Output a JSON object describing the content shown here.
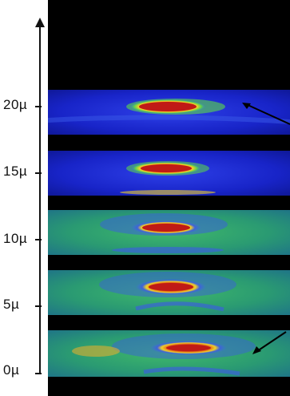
{
  "axis": {
    "labels": [
      "20µ",
      "15µ",
      "10µ",
      "5µ",
      "0µ"
    ]
  },
  "strips": [
    {
      "name": "slice-20um",
      "palette": "blue"
    },
    {
      "name": "slice-15um",
      "palette": "blue"
    },
    {
      "name": "slice-10um",
      "palette": "green"
    },
    {
      "name": "slice-5um",
      "palette": "green"
    },
    {
      "name": "slice-0um",
      "palette": "green"
    }
  ],
  "colors": {
    "background": "#000000",
    "hot_core": "#c0161a",
    "warm_ring": "#f0d020",
    "mid_ring": "#3fbf40",
    "blue_field": "#1a2ad0",
    "green_field": "#2e9e68"
  },
  "annotations": {
    "arrows": 2
  }
}
